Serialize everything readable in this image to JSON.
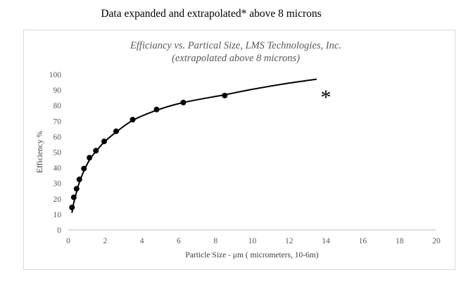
{
  "page": {
    "heading": "Data expanded and extrapolated* above 8 microns"
  },
  "chart_data": {
    "type": "scatter",
    "title": "Efficiancy vs. Partical Size, LMS Technologies, Inc.",
    "subtitle": "(extrapolated above 8 microns)",
    "xlabel": "Particle Size - μm ( micrometers, 10-6m)",
    "ylabel": "Efficiency %",
    "xlim": [
      0,
      20
    ],
    "ylim": [
      0,
      100
    ],
    "x_ticks": [
      "0",
      "2",
      "4",
      "6",
      "8",
      "10",
      "12",
      "14",
      "16",
      "18",
      "20"
    ],
    "y_ticks": [
      "0",
      "10",
      "20",
      "30",
      "40",
      "50",
      "60",
      "70",
      "80",
      "90",
      "100"
    ],
    "grid": false,
    "legend": "none",
    "annotation": "*",
    "series": [
      {
        "type": "scatter",
        "marker_color": "#000000",
        "x": [
          0.2,
          0.3,
          0.45,
          0.6,
          0.85,
          1.15,
          1.5,
          1.95,
          2.6,
          3.5,
          4.8,
          6.25,
          8.5
        ],
        "y": [
          14.5,
          21,
          26.5,
          32.5,
          39.5,
          46.5,
          51,
          57,
          63.5,
          71,
          77.5,
          82,
          86.5
        ]
      },
      {
        "type": "line",
        "line_color": "#000000",
        "x": [
          0.2,
          0.3,
          0.45,
          0.6,
          0.85,
          1.15,
          1.5,
          1.95,
          2.6,
          3.5,
          4.8,
          6.25,
          8.5,
          10,
          12,
          13.5
        ],
        "y": [
          11,
          17.5,
          24.5,
          30.5,
          38,
          45,
          50.5,
          56.5,
          63,
          70.5,
          77,
          82,
          87,
          90.5,
          94.5,
          97
        ]
      }
    ]
  }
}
